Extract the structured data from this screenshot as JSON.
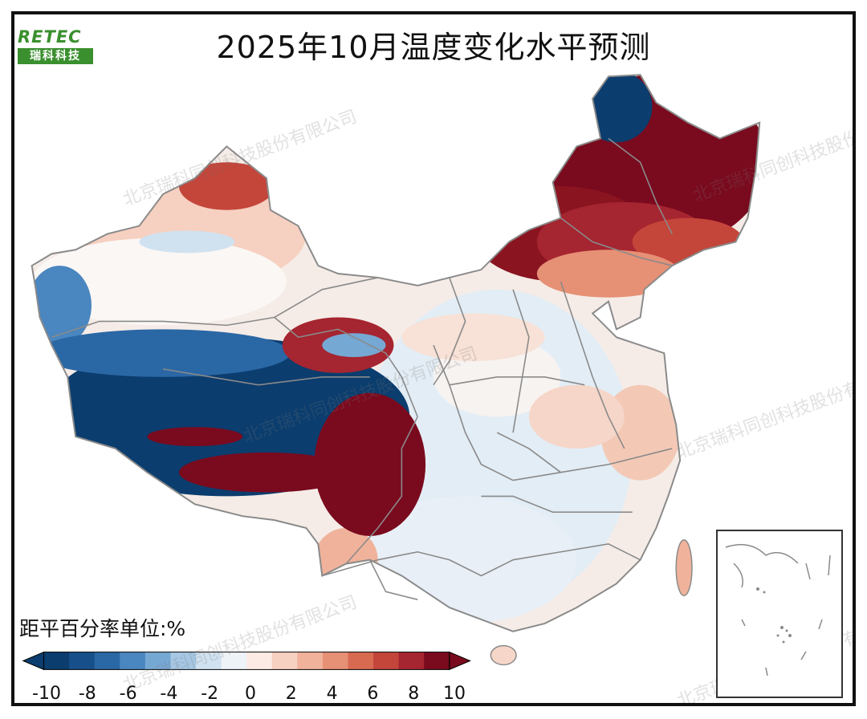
{
  "title": "2025年10月温度变化水平预测",
  "logo": {
    "top": "RETEC",
    "bottom": "瑞科科技"
  },
  "watermark": "北京瑞科同创科技股份有限公司",
  "legend": {
    "title": "距平百分率单位:%",
    "ticks": [
      "-10",
      "-8",
      "-6",
      "-4",
      "-2",
      "0",
      "2",
      "4",
      "6",
      "8",
      "10"
    ],
    "colors": [
      "#0b3d6e",
      "#174f8a",
      "#2a67a5",
      "#4a86bf",
      "#76a8d4",
      "#a6c8e4",
      "#d0e2f0",
      "#eef3f8",
      "#fbebe4",
      "#f6d0c0",
      "#f0b29b",
      "#e69075",
      "#d96a52",
      "#c4453a",
      "#a52530",
      "#7a0a1e"
    ]
  },
  "region_colors": {
    "strong_warm": "#7a0a1e",
    "warm": "#c4453a",
    "mild_warm": "#f0b29b",
    "slight_warm": "#fbebe4",
    "neutral": "#f5f2f0",
    "slight_cool": "#e3edf5",
    "cool": "#76a8d4",
    "strong_cool": "#0b3d6e",
    "border": "#8a8a8a"
  }
}
